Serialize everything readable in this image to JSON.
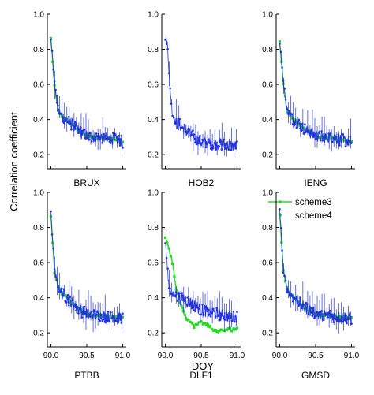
{
  "chart_data": {
    "type": "line",
    "ylabel": "Correlation coefficient",
    "xlabel": "DOY",
    "xlim": [
      89.95,
      91.05
    ],
    "ylim": [
      0.12,
      1.0
    ],
    "x_ticks": [
      "90.0",
      "90.5",
      "91.0"
    ],
    "y_ticks": [
      "0.2",
      "0.4",
      "0.6",
      "0.8",
      "1.0"
    ],
    "legend": {
      "location": "top-right of DLF1 panel",
      "entries": [
        "scheme3",
        "scheme4"
      ]
    },
    "colors": {
      "scheme3": "#22dd22",
      "scheme4": "#2233dd"
    },
    "grid": false,
    "panels": [
      {
        "label": "BRUX",
        "row": 0,
        "col": 0,
        "series": [
          {
            "name": "scheme3",
            "x": [
              90.0,
              90.05,
              90.1,
              90.15,
              90.2,
              90.3,
              90.4,
              90.5,
              90.6,
              90.7,
              90.8,
              90.9,
              91.0
            ],
            "y": [
              0.86,
              0.59,
              0.46,
              0.42,
              0.4,
              0.37,
              0.33,
              0.31,
              0.3,
              0.3,
              0.29,
              0.29,
              0.28
            ]
          },
          {
            "name": "scheme4",
            "x": [
              90.0,
              90.05,
              90.1,
              90.15,
              90.2,
              90.3,
              90.4,
              90.5,
              90.6,
              90.7,
              90.8,
              90.9,
              91.0
            ],
            "y": [
              0.87,
              0.6,
              0.46,
              0.42,
              0.4,
              0.37,
              0.33,
              0.31,
              0.3,
              0.3,
              0.29,
              0.29,
              0.27
            ]
          }
        ]
      },
      {
        "label": "HOB2",
        "row": 0,
        "col": 1,
        "series": [
          {
            "name": "scheme4",
            "x": [
              90.0,
              90.03,
              90.06,
              90.1,
              90.15,
              90.2,
              90.3,
              90.4,
              90.5,
              90.6,
              90.7,
              90.8,
              90.9,
              91.0
            ],
            "y": [
              0.87,
              0.83,
              0.6,
              0.43,
              0.38,
              0.37,
              0.33,
              0.3,
              0.27,
              0.27,
              0.26,
              0.26,
              0.25,
              0.25
            ]
          }
        ]
      },
      {
        "label": "IENG",
        "row": 0,
        "col": 2,
        "series": [
          {
            "name": "scheme3",
            "x": [
              90.0,
              90.05,
              90.1,
              90.15,
              90.2,
              90.3,
              90.4,
              90.5,
              90.6,
              90.7,
              90.8,
              90.9,
              91.0
            ],
            "y": [
              0.84,
              0.6,
              0.45,
              0.42,
              0.4,
              0.36,
              0.33,
              0.31,
              0.3,
              0.3,
              0.29,
              0.28,
              0.27
            ]
          },
          {
            "name": "scheme4",
            "x": [
              90.0,
              90.05,
              90.1,
              90.15,
              90.2,
              90.3,
              90.4,
              90.5,
              90.6,
              90.7,
              90.8,
              90.9,
              91.0
            ],
            "y": [
              0.85,
              0.61,
              0.46,
              0.42,
              0.4,
              0.36,
              0.33,
              0.31,
              0.3,
              0.3,
              0.29,
              0.28,
              0.27
            ]
          }
        ]
      },
      {
        "label": "PTBB",
        "row": 1,
        "col": 0,
        "series": [
          {
            "name": "scheme3",
            "x": [
              90.0,
              90.05,
              90.1,
              90.15,
              90.2,
              90.3,
              90.4,
              90.5,
              90.6,
              90.7,
              90.8,
              90.9,
              91.0
            ],
            "y": [
              0.87,
              0.55,
              0.46,
              0.43,
              0.41,
              0.37,
              0.33,
              0.31,
              0.3,
              0.3,
              0.29,
              0.29,
              0.28
            ]
          },
          {
            "name": "scheme4",
            "x": [
              90.0,
              90.05,
              90.1,
              90.15,
              90.2,
              90.3,
              90.4,
              90.5,
              90.6,
              90.7,
              90.8,
              90.9,
              91.0
            ],
            "y": [
              0.88,
              0.56,
              0.46,
              0.43,
              0.41,
              0.37,
              0.33,
              0.31,
              0.3,
              0.3,
              0.29,
              0.29,
              0.28
            ]
          }
        ]
      },
      {
        "label": "DLF1",
        "row": 1,
        "col": 1,
        "series": [
          {
            "name": "scheme3",
            "x": [
              90.0,
              90.05,
              90.1,
              90.15,
              90.2,
              90.3,
              90.4,
              90.5,
              90.6,
              90.7,
              90.8,
              90.9,
              91.0
            ],
            "y": [
              0.75,
              0.68,
              0.6,
              0.45,
              0.38,
              0.28,
              0.24,
              0.26,
              0.24,
              0.21,
              0.21,
              0.22,
              0.22
            ]
          },
          {
            "name": "scheme4",
            "x": [
              90.0,
              90.05,
              90.1,
              90.15,
              90.2,
              90.3,
              90.4,
              90.5,
              90.6,
              90.7,
              90.8,
              90.9,
              91.0
            ],
            "y": [
              0.72,
              0.46,
              0.42,
              0.41,
              0.4,
              0.38,
              0.36,
              0.33,
              0.32,
              0.31,
              0.3,
              0.29,
              0.29
            ]
          }
        ]
      },
      {
        "label": "GMSD",
        "row": 1,
        "col": 2,
        "series": [
          {
            "name": "scheme3",
            "x": [
              90.0,
              90.05,
              90.1,
              90.15,
              90.2,
              90.3,
              90.4,
              90.5,
              90.6,
              90.7,
              90.8,
              90.9,
              91.0
            ],
            "y": [
              0.88,
              0.55,
              0.45,
              0.42,
              0.4,
              0.36,
              0.33,
              0.31,
              0.3,
              0.3,
              0.29,
              0.29,
              0.28
            ]
          },
          {
            "name": "scheme4",
            "x": [
              90.0,
              90.05,
              90.1,
              90.15,
              90.2,
              90.3,
              90.4,
              90.5,
              90.6,
              90.7,
              90.8,
              90.9,
              91.0
            ],
            "y": [
              0.89,
              0.56,
              0.45,
              0.42,
              0.4,
              0.36,
              0.33,
              0.31,
              0.3,
              0.3,
              0.29,
              0.29,
              0.28
            ]
          }
        ]
      }
    ]
  }
}
